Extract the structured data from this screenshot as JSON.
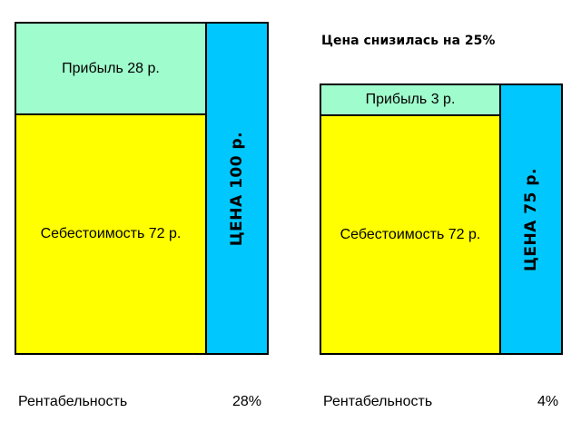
{
  "colors": {
    "profit": "#9ffccc",
    "cost": "#ffff00",
    "price": "#00c8ff",
    "border": "#000000"
  },
  "left": {
    "profit_label": "Прибыль 28 р.",
    "cost_label": "Себестоимость 72 р.",
    "price_label": "ЦЕНА  100 р.",
    "profitability_label": "Рентабельность",
    "profitability_value": "28%"
  },
  "right": {
    "heading": "Цена снизилась на 25%",
    "profit_label": "Прибыль 3 р.",
    "cost_label": "Себестоимость 72 р.",
    "price_label": "ЦЕНА  75 р.",
    "profitability_label": "Рентабельность",
    "profitability_value": "4%"
  }
}
